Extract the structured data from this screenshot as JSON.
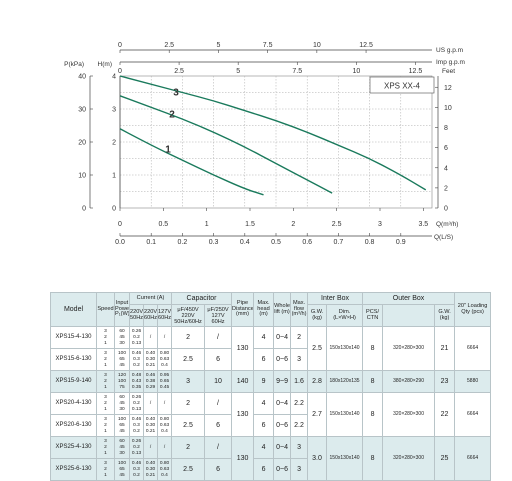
{
  "chart_data": {
    "type": "line",
    "legend_box": "XPS XX-4",
    "x_axis_bottom": {
      "label": "Q(L/S)",
      "ticks": [
        "0.0",
        "0.1",
        "0.2",
        "0.3",
        "0.4",
        "0.5",
        "0.6",
        "0.7",
        "0.8",
        "0.9"
      ],
      "range": [
        0,
        1.0
      ]
    },
    "x_axis_top1": {
      "label": "US g.p.m",
      "ticks": [
        "0",
        "2.5",
        "5",
        "7.5",
        "10",
        "12.5"
      ],
      "range": [
        0,
        15.85
      ]
    },
    "x_axis_top2": {
      "label": "Imp g.p.m",
      "ticks": [
        "0",
        "2.5",
        "5",
        "7.5",
        "10",
        "12.5"
      ],
      "range": [
        0,
        13.2
      ]
    },
    "x_axis_secondary": {
      "label": "Q(m³/h)",
      "ticks": [
        "0",
        "0.5",
        "1",
        "1.5",
        "2",
        "2.5",
        "3",
        "3.5"
      ],
      "range": [
        0,
        3.6
      ]
    },
    "y_axis_left_kpa": {
      "label": "P(kPa)",
      "ticks": [
        "0",
        "10",
        "20",
        "30",
        "40"
      ],
      "range": [
        0,
        40
      ]
    },
    "y_axis_left_m": {
      "label": "H(m)",
      "ticks": [
        "0",
        "1",
        "2",
        "3",
        "4"
      ],
      "range": [
        0,
        4
      ]
    },
    "y_axis_right_feet": {
      "label": "Feet",
      "ticks": [
        "0",
        "2",
        "4",
        "6",
        "8",
        "10",
        "12"
      ],
      "range": [
        0,
        13.12
      ]
    },
    "grid": true,
    "series": [
      {
        "label": "1",
        "x": [
          0,
          0.1,
          0.2,
          0.3,
          0.4,
          0.46
        ],
        "y": [
          2.4,
          1.9,
          1.45,
          1.0,
          0.58,
          0.4
        ]
      },
      {
        "label": "2",
        "x": [
          0,
          0.1,
          0.2,
          0.3,
          0.4,
          0.5,
          0.6,
          0.68
        ],
        "y": [
          3.4,
          3.05,
          2.7,
          2.3,
          1.85,
          1.35,
          0.85,
          0.45
        ]
      },
      {
        "label": "3",
        "x": [
          0,
          0.1,
          0.2,
          0.3,
          0.4,
          0.5,
          0.6,
          0.7,
          0.8,
          0.9,
          0.98
        ],
        "y": [
          4.0,
          3.75,
          3.5,
          3.25,
          2.95,
          2.65,
          2.3,
          1.9,
          1.5,
          1.0,
          0.55
        ]
      }
    ]
  },
  "table": {
    "headers": {
      "model": "Model",
      "speed": "Speed",
      "input_power": "Input Power P₁(W)",
      "current": "Current (A)",
      "current_220a": "220V 50Hz",
      "current_220b": "220V 60Hz",
      "current_127": "127V 60Hz",
      "capacitor": "Capacitor",
      "cap_450": "μF/450V",
      "cap_250": "μF/250V",
      "cap_220": "220V 50Hz/60Hz",
      "cap_127": "127V 60Hz",
      "pipe": "Pipe Distance (mm)",
      "max_head": "Max. head (m)",
      "whole_lift": "Whole lift (m)",
      "max_flow": "Max. flow (m³/h)",
      "inter_box": "Inter Box",
      "gw": "G.W. (kg)",
      "dim": "Dim. (L×W×H)",
      "outer_box": "Outer Box",
      "pcs_ctn": "PCS/ CTN",
      "outer_dim": "",
      "outer_gw": "G.W. (kg)",
      "loading": "20\" Loading Qty (pcs)"
    },
    "groups": [
      {
        "shade": false,
        "models": [
          "XPS15-4-130",
          "XPS15-6-130"
        ],
        "speeds": [
          [
            "3",
            "2",
            "1"
          ],
          [
            "3",
            "2",
            "1"
          ]
        ],
        "powers": [
          [
            "60",
            "45",
            "30"
          ],
          [
            "100",
            "65",
            "45"
          ]
        ],
        "amps_220a": [
          [
            "0.26",
            "0.2",
            "0.13"
          ],
          [
            "0.46",
            "0.3",
            "0.2"
          ]
        ],
        "amps_220b": [
          [
            "/",
            "",
            ""
          ],
          [
            "0.40",
            "0.30",
            "0.21"
          ]
        ],
        "amps_127": [
          [
            "/",
            "",
            ""
          ],
          [
            "0.80",
            "0.63",
            "0.4"
          ]
        ],
        "cap_450": [
          "2",
          "2.5"
        ],
        "cap_250": [
          "/",
          "6"
        ],
        "pipe": "130",
        "max_head": [
          "4",
          "6"
        ],
        "lift": [
          "0~4",
          "0~6"
        ],
        "flow": [
          "2",
          "3"
        ],
        "inter_gw": "2.5",
        "inter_dim": "150x130x140",
        "pcs": "8",
        "outer_dim": "320×280×300",
        "outer_gw": "21",
        "loading": "6664"
      },
      {
        "shade": true,
        "models": [
          "XPS15-9-140"
        ],
        "speeds": [
          [
            "3",
            "2",
            "1"
          ]
        ],
        "powers": [
          [
            "120",
            "100",
            "75"
          ]
        ],
        "amps_220a": [
          [
            "0.48",
            "0.43",
            "0.35"
          ]
        ],
        "amps_220b": [
          [
            "0.46",
            "0.38",
            "0.29"
          ]
        ],
        "amps_127": [
          [
            "0.95",
            "0.65",
            "0.45"
          ]
        ],
        "cap_450": [
          "3"
        ],
        "cap_250": [
          "10"
        ],
        "pipe": "140",
        "max_head": [
          "9"
        ],
        "lift": [
          "9~9"
        ],
        "flow": [
          "1.6"
        ],
        "inter_gw": "2.8",
        "inter_dim": "180x120x135",
        "pcs": "8",
        "outer_dim": "380×280×290",
        "outer_gw": "23",
        "loading": "5880"
      },
      {
        "shade": false,
        "models": [
          "XPS20-4-130",
          "XPS20-6-130"
        ],
        "speeds": [
          [
            "3",
            "2",
            "1"
          ],
          [
            "3",
            "2",
            "1"
          ]
        ],
        "powers": [
          [
            "60",
            "45",
            "30"
          ],
          [
            "100",
            "65",
            "45"
          ]
        ],
        "amps_220a": [
          [
            "0.26",
            "0.2",
            "0.13"
          ],
          [
            "0.46",
            "0.3",
            "0.2"
          ]
        ],
        "amps_220b": [
          [
            "/",
            "",
            ""
          ],
          [
            "0.40",
            "0.30",
            "0.21"
          ]
        ],
        "amps_127": [
          [
            "/",
            "",
            ""
          ],
          [
            "0.80",
            "0.63",
            "0.4"
          ]
        ],
        "cap_450": [
          "2",
          "2.5"
        ],
        "cap_250": [
          "/",
          "6"
        ],
        "pipe": "130",
        "max_head": [
          "4",
          "6"
        ],
        "lift": [
          "0~4",
          "0~6"
        ],
        "flow": [
          "2.2",
          "2.2"
        ],
        "inter_gw": "2.7",
        "inter_dim": "150x130x140",
        "pcs": "8",
        "outer_dim": "320×280×300",
        "outer_gw": "22",
        "loading": "6664"
      },
      {
        "shade": true,
        "models": [
          "XPS25-4-130",
          "XPS25-6-130"
        ],
        "speeds": [
          [
            "3",
            "2",
            "1"
          ],
          [
            "3",
            "2",
            "1"
          ]
        ],
        "powers": [
          [
            "60",
            "45",
            "30"
          ],
          [
            "100",
            "65",
            "45"
          ]
        ],
        "amps_220a": [
          [
            "0.26",
            "0.2",
            "0.13"
          ],
          [
            "0.46",
            "0.3",
            "0.2"
          ]
        ],
        "amps_220b": [
          [
            "/",
            "",
            ""
          ],
          [
            "0.40",
            "0.30",
            "0.21"
          ]
        ],
        "amps_127": [
          [
            "/",
            "",
            ""
          ],
          [
            "0.80",
            "0.63",
            "0.4"
          ]
        ],
        "cap_450": [
          "2",
          "2.5"
        ],
        "cap_250": [
          "/",
          "6"
        ],
        "pipe": "130",
        "max_head": [
          "4",
          "6"
        ],
        "lift": [
          "0~4",
          "0~6"
        ],
        "flow": [
          "3",
          "3"
        ],
        "inter_gw": "3.0",
        "inter_dim": "150x130x140",
        "pcs": "8",
        "outer_dim": "320×280×300",
        "outer_gw": "25",
        "loading": "6664"
      }
    ]
  }
}
